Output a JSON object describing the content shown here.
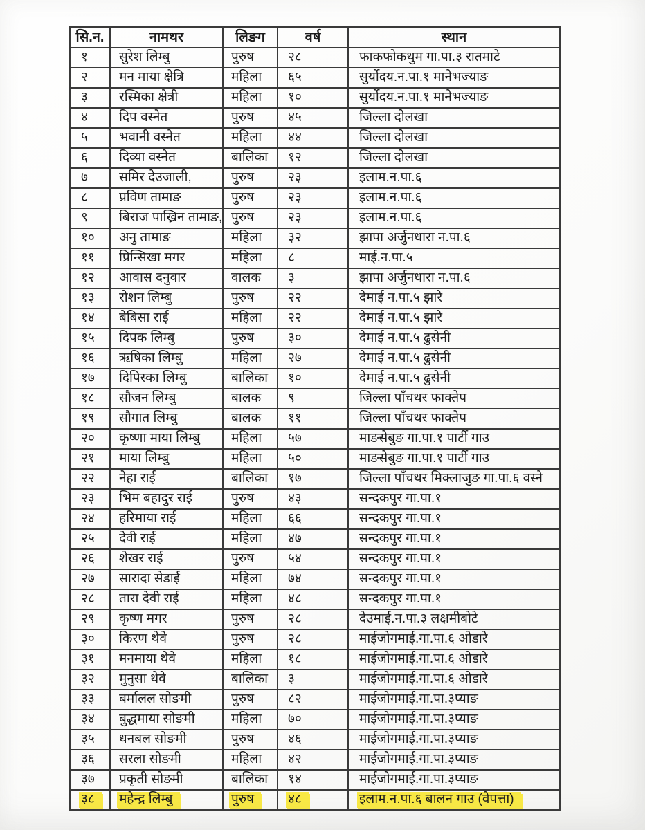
{
  "document": {
    "kind": "scanned-nepali-name-list",
    "highlight_color": "#f9e945",
    "table": {
      "headers": {
        "sn": "सि.न.",
        "name": "नामथर",
        "gender": "लिङग",
        "age": "वर्ष",
        "place": "स्थान"
      },
      "rows": [
        {
          "sn": "१",
          "name": "सुरेश लिम्बु",
          "gender": "पुरुष",
          "age": "२८",
          "place": "फाकफोकथुम गा.पा.३ रातमाटे",
          "highlighted": false
        },
        {
          "sn": "२",
          "name": "मन माया क्षेत्रि",
          "gender": "महिला",
          "age": "६५",
          "place": "सुर्योदय.न.पा.१ मानेभज्याङ",
          "highlighted": false
        },
        {
          "sn": "३",
          "name": "रस्मिका क्षेत्री",
          "gender": "महिला",
          "age": "१०",
          "place": "सुर्योदय.न.पा.१ मानेभज्याङ",
          "highlighted": false
        },
        {
          "sn": "४",
          "name": "दिप वस्नेत",
          "gender": "पुरुष",
          "age": "४५",
          "place": "जिल्ला दोलखा",
          "highlighted": false
        },
        {
          "sn": "५",
          "name": "भवानी वस्नेत",
          "gender": "महिला",
          "age": "४४",
          "place": "जिल्ला दोलखा",
          "highlighted": false
        },
        {
          "sn": "६",
          "name": "दिव्या वस्नेत",
          "gender": "बालिका",
          "age": "१२",
          "place": "जिल्ला दोलखा",
          "highlighted": false
        },
        {
          "sn": "७",
          "name": "समिर देउजाली,",
          "gender": "पुरुष",
          "age": "२३",
          "place": "इलाम.न.पा.६",
          "highlighted": false
        },
        {
          "sn": "८",
          "name": "प्रविण तामाङ",
          "gender": "पुरुष",
          "age": "२३",
          "place": "इलाम.न.पा.६",
          "highlighted": false
        },
        {
          "sn": "९",
          "name": "बिराज पाख्रिन तामाङ,",
          "gender": "पुरुष",
          "age": "२३",
          "place": "इलाम.न.पा.६",
          "highlighted": false
        },
        {
          "sn": "१०",
          "name": "अनु तामाङ",
          "gender": "महिला",
          "age": "३२",
          "place": "झापा अर्जुनधारा न.पा.६",
          "highlighted": false
        },
        {
          "sn": "११",
          "name": "प्रिन्सिखा मगर",
          "gender": "महिला",
          "age": "८",
          "place": "माई.न.पा.५",
          "highlighted": false
        },
        {
          "sn": "१२",
          "name": "आवास दनुवार",
          "gender": "वालक",
          "age": "३",
          "place": "झापा अर्जुनधारा न.पा.६",
          "highlighted": false
        },
        {
          "sn": "१३",
          "name": "रोशन लिम्बु",
          "gender": "पुरुष",
          "age": "२२",
          "place": "देमाई न.पा.५ झारे",
          "highlighted": false
        },
        {
          "sn": "१४",
          "name": "बेबिसा राई",
          "gender": "महिला",
          "age": "२२",
          "place": "देमाई न.पा.५ झारे",
          "highlighted": false
        },
        {
          "sn": "१५",
          "name": "दिपक लिम्बु",
          "gender": "पुरुष",
          "age": "३०",
          "place": "देमाई न.पा.५ ढुसेनी",
          "highlighted": false
        },
        {
          "sn": "१६",
          "name": "ऋषिका लिम्बु",
          "gender": "महिला",
          "age": "२७",
          "place": "देमाई न.पा.५ ढुसेनी",
          "highlighted": false
        },
        {
          "sn": "१७",
          "name": "दिपिस्का लिम्बु",
          "gender": "बालिका",
          "age": "१०",
          "place": "देमाई न.पा.५ ढुसेनी",
          "highlighted": false
        },
        {
          "sn": "१८",
          "name": "सौजन लिम्बु",
          "gender": "बालक",
          "age": "९",
          "place": "जिल्ला पाँचथर फाक्तेप",
          "highlighted": false
        },
        {
          "sn": "१९",
          "name": "सौगात लिम्बु",
          "gender": "बालक",
          "age": "११",
          "place": "जिल्ला पाँचथर फाक्तेप",
          "highlighted": false
        },
        {
          "sn": "२०",
          "name": "कृष्णा माया लिम्बु",
          "gender": "महिला",
          "age": "५७",
          "place": "माङसेबुङ गा.पा.१ पार्टी गाउ",
          "highlighted": false
        },
        {
          "sn": "२१",
          "name": "माया लिम्बु",
          "gender": "महिला",
          "age": "५०",
          "place": "माङसेबुङ गा.पा.१ पार्टी गाउ",
          "highlighted": false
        },
        {
          "sn": "२२",
          "name": "नेहा राई",
          "gender": "बालिका",
          "age": "१७",
          "place": "जिल्ला पाँचथर मिक्लाजुङ गा.पा.६ वस्ने",
          "highlighted": false
        },
        {
          "sn": "२३",
          "name": "भिम बहादुर राई",
          "gender": "पुरुष",
          "age": "४३",
          "place": "सन्दकपुर गा.पा.१",
          "highlighted": false
        },
        {
          "sn": "२४",
          "name": "हरिमाया राई",
          "gender": "महिला",
          "age": "६६",
          "place": "सन्दकपुर गा.पा.१",
          "highlighted": false
        },
        {
          "sn": "२५",
          "name": "देवी राई",
          "gender": "महिला",
          "age": "४७",
          "place": "सन्दकपुर गा.पा.१",
          "highlighted": false
        },
        {
          "sn": "२६",
          "name": "शेखर राई",
          "gender": "पुरुष",
          "age": "५४",
          "place": "सन्दकपुर गा.पा.१",
          "highlighted": false
        },
        {
          "sn": "२७",
          "name": "सारादा  सेडाई",
          "gender": "महिला",
          "age": "७४",
          "place": "सन्दकपुर गा.पा.१",
          "highlighted": false
        },
        {
          "sn": "२८",
          "name": "तारा देवी राई",
          "gender": "महिला",
          "age": "४८",
          "place": "सन्दकपुर गा.पा.१",
          "highlighted": false
        },
        {
          "sn": "२९",
          "name": "कृष्ण मगर",
          "gender": "पुरुष",
          "age": "२८",
          "place": "देउमाई.न.पा.३ लक्षमीबोटे",
          "highlighted": false
        },
        {
          "sn": "३०",
          "name": "किरण थेवे",
          "gender": "पुरुष",
          "age": "२८",
          "place": "माईजोगमाई.गा.पा.६ ओडारे",
          "highlighted": false
        },
        {
          "sn": "३१",
          "name": "मनमाया थेवे",
          "gender": "महिला",
          "age": "१८",
          "place": "माईजोगमाई.गा.पा.६ ओडारे",
          "highlighted": false
        },
        {
          "sn": "३२",
          "name": "मुनुसा थेवे",
          "gender": "बालिका",
          "age": "३",
          "place": "माईजोगमाई.गा.पा.६ ओडारे",
          "highlighted": false
        },
        {
          "sn": "३३",
          "name": "बर्मालल सोङमी",
          "gender": "पुरुष",
          "age": "८२",
          "place": "माईजोगमाई.गा.पा.३प्याङ",
          "highlighted": false
        },
        {
          "sn": "३४",
          "name": "बुद्धमाया सोङमी",
          "gender": "महिला",
          "age": "७०",
          "place": "माईजोगमाई.गा.पा.३प्याङ",
          "highlighted": false
        },
        {
          "sn": "३५",
          "name": "धनबल सोङमी",
          "gender": "पुरुष",
          "age": "४६",
          "place": "माईजोगमाई.गा.पा.३प्याङ",
          "highlighted": false
        },
        {
          "sn": "३६",
          "name": "सरला सोङमी",
          "gender": "महिला",
          "age": "४२",
          "place": "माईजोगमाई.गा.पा.३प्याङ",
          "highlighted": false
        },
        {
          "sn": "३७",
          "name": "प्रकृती सोङमी",
          "gender": "बालिका",
          "age": "१४",
          "place": "माईजोगमाई.गा.पा.३प्याङ",
          "highlighted": false
        },
        {
          "sn": "३८",
          "name": "महेन्द्र लिम्बु",
          "gender": "पुरुष",
          "age": "४८",
          "place": "इलाम.न.पा.६ बालन गाउ (वेपत्ता)",
          "highlighted": true
        }
      ]
    }
  }
}
